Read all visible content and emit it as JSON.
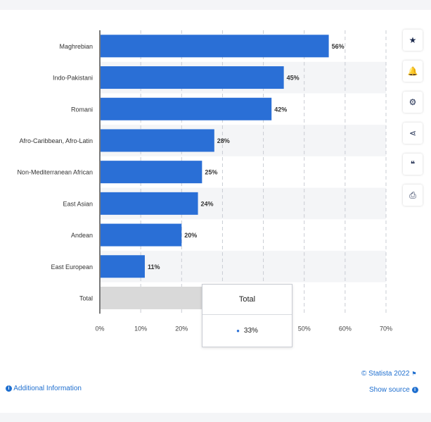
{
  "chart_data": {
    "type": "bar",
    "orientation": "horizontal",
    "categories": [
      "Maghrebian",
      "Indo-Pakistani",
      "Romani",
      "Afro-Caribbean, Afro-Latin",
      "Non-Mediterranean African",
      "East Asian",
      "Andean",
      "East European",
      "Total"
    ],
    "values": [
      56,
      45,
      42,
      28,
      25,
      24,
      20,
      11,
      33
    ],
    "value_labels": [
      "56%",
      "45%",
      "42%",
      "28%",
      "25%",
      "24%",
      "20%",
      "11%",
      ""
    ],
    "highlighted_category": "Total",
    "x_ticks": [
      "0%",
      "10%",
      "20%",
      "30%",
      "40%",
      "50%",
      "60%",
      "70%"
    ],
    "xlim": [
      0,
      70
    ],
    "grid": true,
    "colors": {
      "bar": "#2a6fd6",
      "highlight": "#d9d9d9"
    }
  },
  "tooltip": {
    "title": "Total",
    "value": "33%"
  },
  "toolbar": [
    {
      "name": "star-icon",
      "glyph": "★"
    },
    {
      "name": "bell-icon",
      "glyph": "🔔"
    },
    {
      "name": "gear-icon",
      "glyph": "⚙"
    },
    {
      "name": "share-icon",
      "glyph": "⋖"
    },
    {
      "name": "quote-icon",
      "glyph": "❝"
    },
    {
      "name": "print-icon",
      "glyph": "⎙"
    }
  ],
  "footer": {
    "copyright": "© Statista 2022",
    "additional_info": "Additional Information",
    "show_source": "Show source",
    "info_glyph": "i"
  }
}
